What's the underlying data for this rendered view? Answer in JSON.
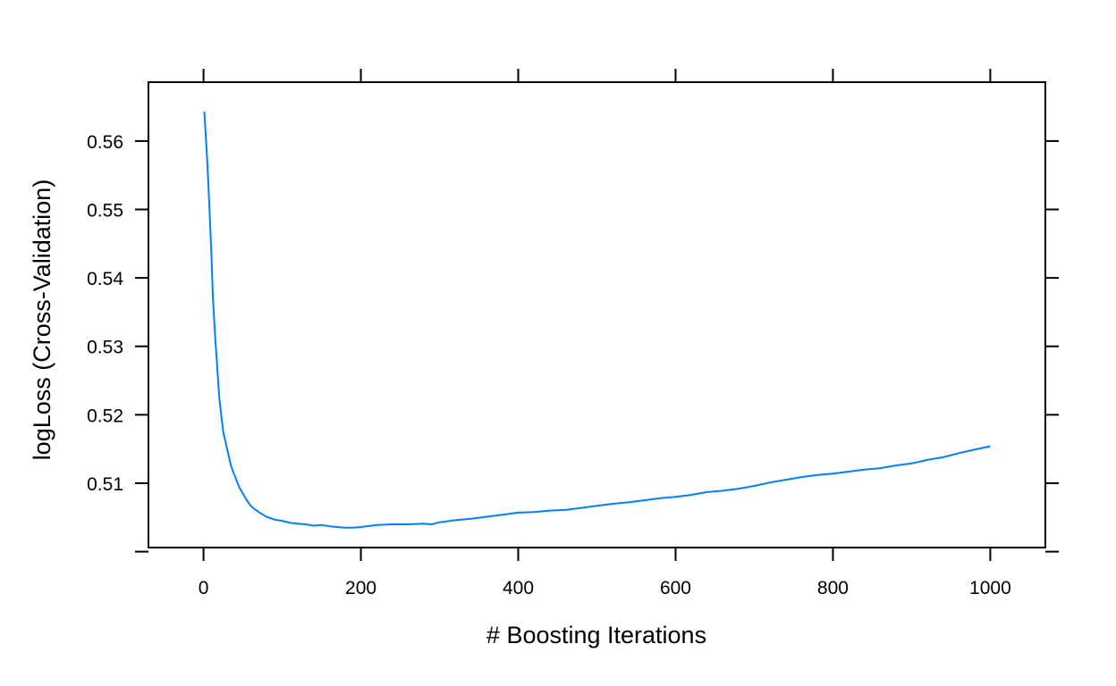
{
  "chart_data": {
    "type": "line",
    "title": "",
    "xlabel": "# Boosting Iterations",
    "ylabel": "logLoss (Cross-Validation)",
    "xlim": [
      -70,
      1070
    ],
    "ylim": [
      0.5006,
      0.5686
    ],
    "xticks": [
      0,
      200,
      400,
      600,
      800,
      1000
    ],
    "xtick_labels": [
      "0",
      "200",
      "400",
      "600",
      "800",
      "1000"
    ],
    "yticks": [
      0.5,
      0.51,
      0.52,
      0.53,
      0.54,
      0.55,
      0.56
    ],
    "ytick_labels": [
      "",
      "0.51",
      "0.52",
      "0.53",
      "0.54",
      "0.55",
      "0.56"
    ],
    "grid": false,
    "legend": "none",
    "series": [
      {
        "color": "#0080ff",
        "x": [
          1,
          3,
          5,
          8,
          10,
          12,
          15,
          20,
          25,
          30,
          35,
          40,
          45,
          50,
          55,
          60,
          65,
          70,
          80,
          90,
          100,
          110,
          120,
          130,
          140,
          150,
          160,
          170,
          180,
          190,
          200,
          220,
          240,
          260,
          280,
          290,
          300,
          320,
          340,
          360,
          380,
          400,
          420,
          440,
          460,
          480,
          500,
          520,
          540,
          560,
          580,
          600,
          620,
          640,
          660,
          680,
          700,
          720,
          740,
          760,
          780,
          800,
          820,
          840,
          860,
          880,
          900,
          920,
          940,
          960,
          980,
          1000
        ],
        "y": [
          0.5643,
          0.5605,
          0.5565,
          0.549,
          0.5435,
          0.537,
          0.531,
          0.5225,
          0.5175,
          0.515,
          0.5125,
          0.511,
          0.5095,
          0.5085,
          0.5075,
          0.5067,
          0.5062,
          0.5058,
          0.5051,
          0.5047,
          0.5045,
          0.5042,
          0.5041,
          0.504,
          0.5038,
          0.5039,
          0.5037,
          0.5036,
          0.5035,
          0.5035,
          0.5036,
          0.5039,
          0.504,
          0.504,
          0.5041,
          0.504,
          0.5043,
          0.5046,
          0.5048,
          0.5051,
          0.5054,
          0.5057,
          0.5058,
          0.506,
          0.5061,
          0.5064,
          0.5067,
          0.507,
          0.5072,
          0.5075,
          0.5078,
          0.508,
          0.5083,
          0.5087,
          0.5089,
          0.5092,
          0.5096,
          0.5101,
          0.5105,
          0.5109,
          0.5112,
          0.5114,
          0.5117,
          0.512,
          0.5122,
          0.5126,
          0.5129,
          0.5134,
          0.5138,
          0.5144,
          0.5149,
          0.5154
        ]
      }
    ]
  }
}
